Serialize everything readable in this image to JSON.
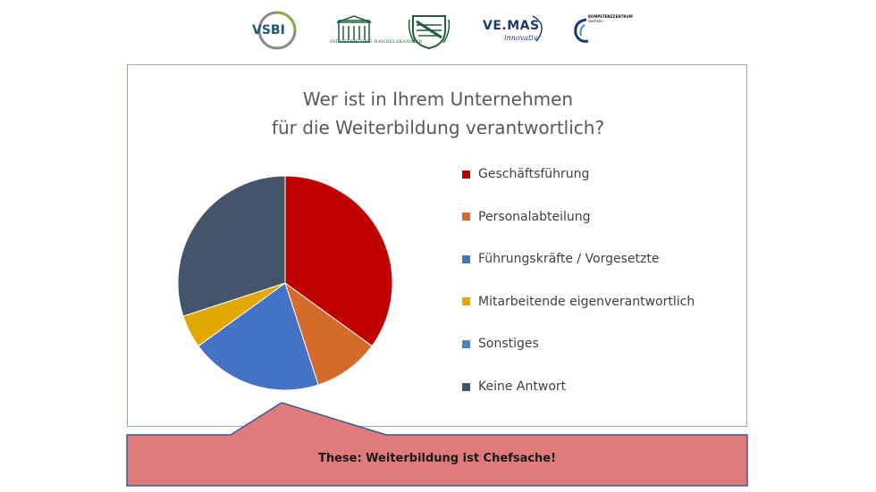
{
  "logos": {
    "vsbi": "VSBI",
    "ihk": "INDUSTRIE UND HANDELSKAMMER",
    "vemas": "VE.MAS",
    "vemas_sub": "innovativ",
    "kompetenz_line1": "KOMPETENZZENTRUM",
    "kompetenz_line2": "Sachsen"
  },
  "chart_data": {
    "type": "pie",
    "title_line1": "Wer ist in Ihrem Unternehmen",
    "title_line2": "für die Weiterbildung verantwortlich?",
    "legend_position": "right",
    "slices": [
      {
        "label": "Geschäftsführung",
        "value": 35,
        "color": "#c00000"
      },
      {
        "label": "Personalabteilung",
        "value": 10,
        "color": "#d46b2a"
      },
      {
        "label": "Führungskräfte / Vorgesetzte",
        "value": 20,
        "color": "#4472c4"
      },
      {
        "label": "Mitarbeitende eigenverantwortlich",
        "value": 5,
        "color": "#e3a800"
      },
      {
        "label": "Sonstiges",
        "value": 0,
        "color": "#4a86c0"
      },
      {
        "label": "Keine Antwort",
        "value": 30,
        "color": "#44546a"
      }
    ]
  },
  "callout": {
    "text": "These: Weiterbildung ist Chefsache!",
    "fill": "#e07b7b",
    "stroke": "#3a5a9c"
  }
}
